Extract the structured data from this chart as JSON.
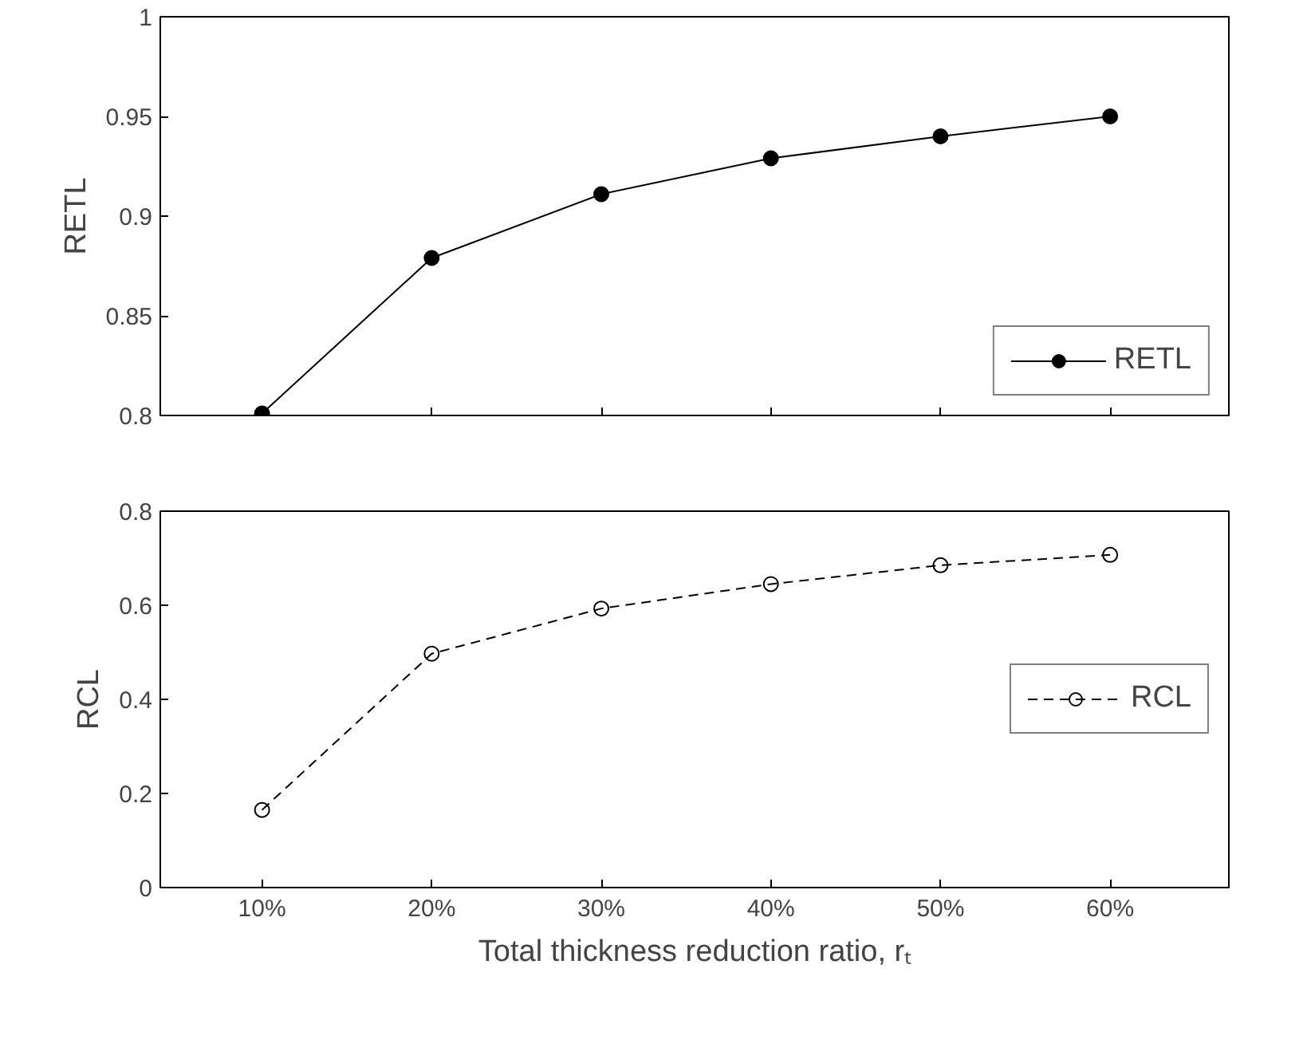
{
  "chart_data": [
    {
      "type": "line",
      "ylabel": "RETL",
      "x": [
        10,
        20,
        30,
        40,
        50,
        60
      ],
      "xlim": [
        4,
        67
      ],
      "xticks": [
        10,
        20,
        30,
        40,
        50,
        60
      ],
      "ylim": [
        0.8,
        1
      ],
      "yticks": [
        0.8,
        0.85,
        0.9,
        0.95,
        1
      ],
      "tick_labels": "y",
      "grid": false,
      "legend": "bottom right",
      "marker": "circle",
      "line_style": "solid",
      "series": [
        {
          "name": "RETL",
          "color": "#000000",
          "values": [
            0.801,
            0.879,
            0.911,
            0.929,
            0.94,
            0.95
          ]
        }
      ]
    },
    {
      "type": "line",
      "ylabel": "RCL",
      "xlabel": "Total thickness reduction ratio, rₜ",
      "x": [
        10,
        20,
        30,
        40,
        50,
        60
      ],
      "xlim": [
        4,
        67
      ],
      "xticks": [
        {
          "value": 10,
          "label": "10%"
        },
        {
          "value": 20,
          "label": "20%"
        },
        {
          "value": 30,
          "label": "30%"
        },
        {
          "value": 40,
          "label": "40%"
        },
        {
          "value": 50,
          "label": "50%"
        },
        {
          "value": 60,
          "label": "60%"
        }
      ],
      "ylim": [
        0,
        0.8
      ],
      "yticks": [
        0,
        0.2,
        0.4,
        0.6,
        0.8
      ],
      "grid": false,
      "legend": "right",
      "marker": "circle",
      "line_style": "dashed",
      "series": [
        {
          "name": "RCL",
          "color": "#000000",
          "values": [
            0.165,
            0.497,
            0.593,
            0.645,
            0.685,
            0.707
          ]
        }
      ]
    }
  ]
}
